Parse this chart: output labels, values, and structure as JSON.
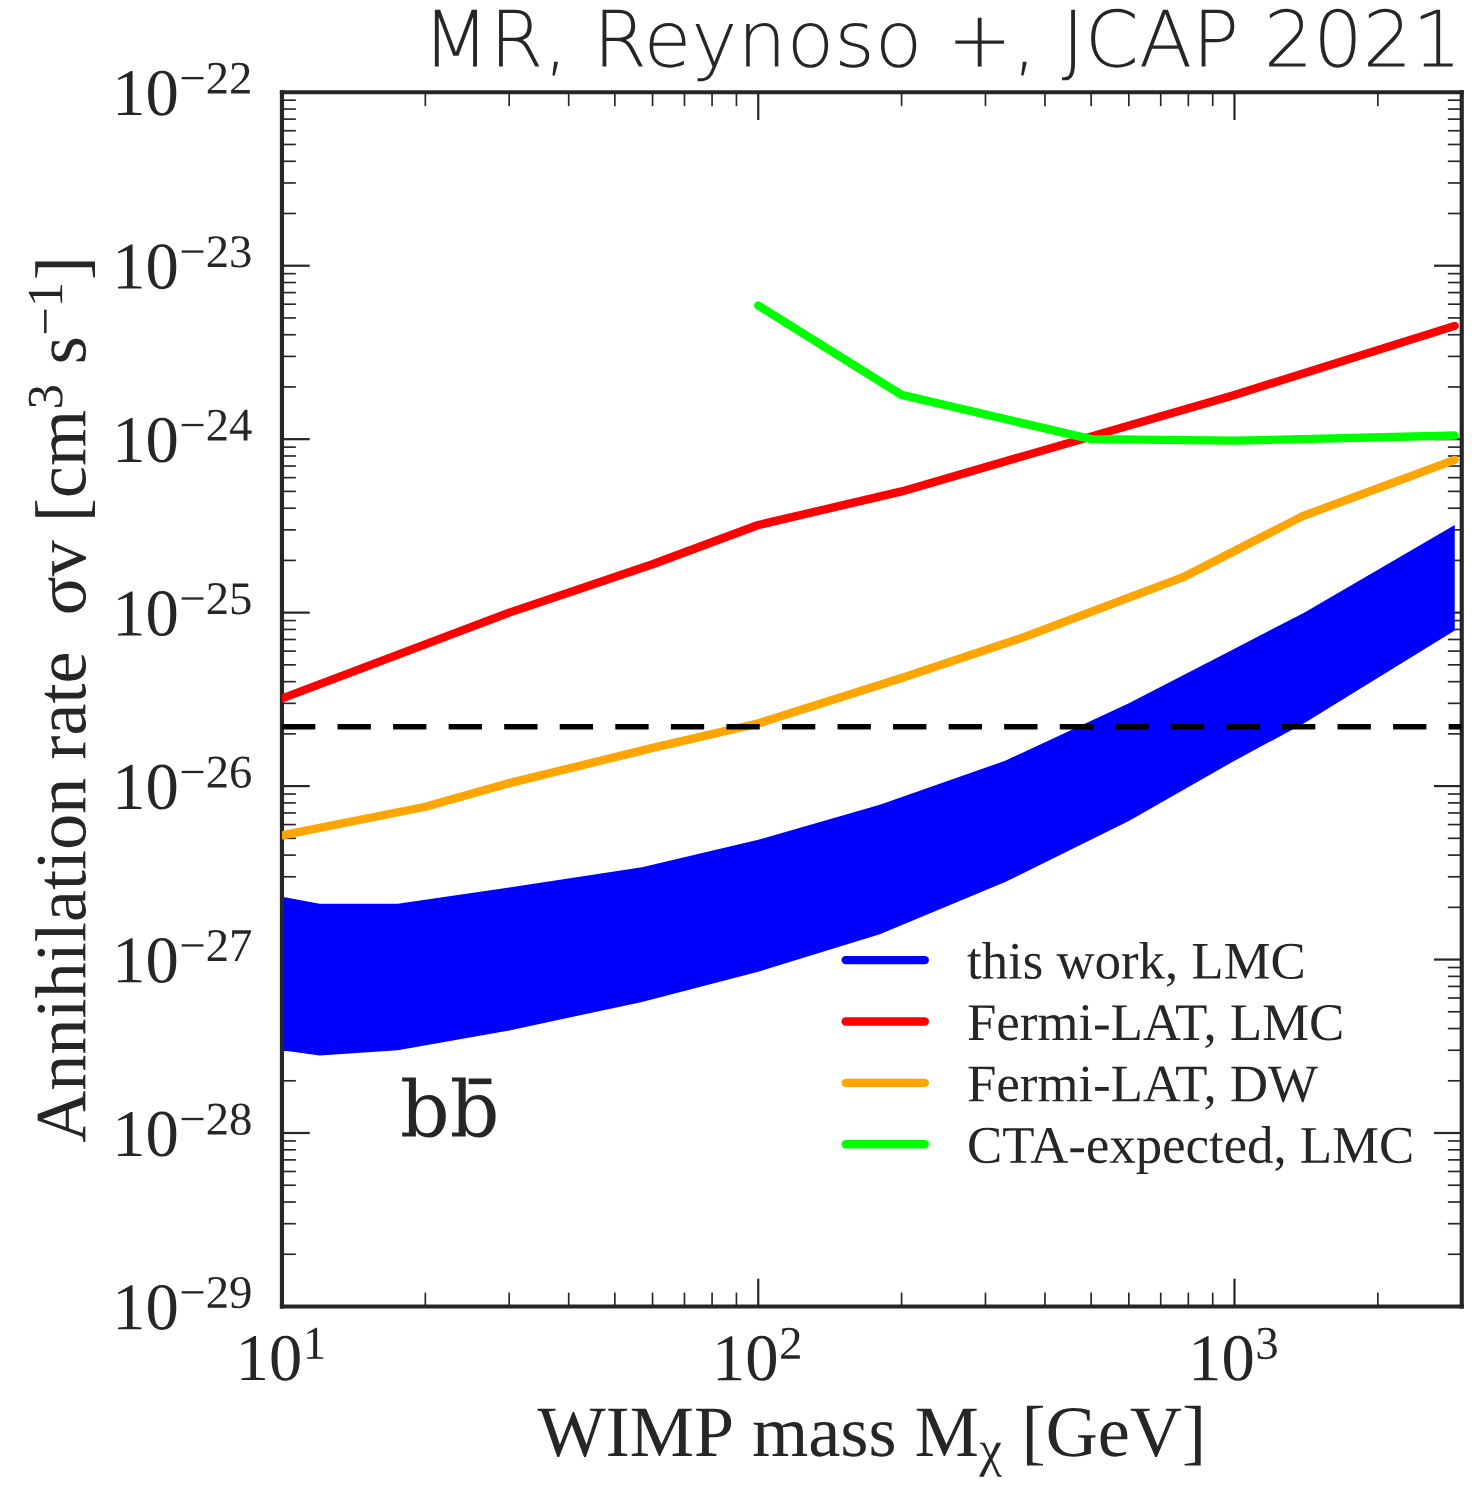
{
  "chart_data": {
    "type": "line",
    "title": "MR, Reynoso +, JCAP 2021",
    "xlabel": "WIMP mass M$_{χ}$ [GeV]",
    "ylabel": "Annihilation rate  σv [cm$^{3}$ s$^{−1}$]",
    "log": "xy",
    "xlim": [
      10,
      3000
    ],
    "ylim": [
      1e-29,
      1e-22
    ],
    "xticks": [
      {
        "value": 10,
        "label": "10$^{1}$"
      },
      {
        "value": 100,
        "label": "10$^{2}$"
      },
      {
        "value": 1000,
        "label": "10$^{3}$"
      }
    ],
    "yticks": [
      {
        "value": 1e-29,
        "label": "10$^{−29}$"
      },
      {
        "value": 1e-28,
        "label": "10$^{−28}$"
      },
      {
        "value": 1e-27,
        "label": "10$^{−27}$"
      },
      {
        "value": 1e-26,
        "label": "10$^{−26}$"
      },
      {
        "value": 1e-25,
        "label": "10$^{−25}$"
      },
      {
        "value": 1e-24,
        "label": "10$^{−24}$"
      },
      {
        "value": 1e-23,
        "label": "10$^{−23}$"
      },
      {
        "value": 1e-22,
        "label": "10$^{−22}$"
      }
    ],
    "series": [
      {
        "name": "this work, LMC",
        "color": "#0000ff",
        "x": [
          10,
          12,
          17.5,
          30,
          57,
          100,
          180,
          330,
          600,
          1000,
          1400,
          2900
        ],
        "values": [
          null,
          null,
          null,
          null,
          null,
          null,
          null,
          null,
          null,
          null,
          null,
          null
        ],
        "upper": [
          2.3e-27,
          2.1e-27,
          2.1e-27,
          2.6e-27,
          3.4e-27,
          4.9e-27,
          7.8e-27,
          1.4e-26,
          3e-26,
          6.2e-26,
          1e-25,
          3.2e-25
        ],
        "lower": [
          3e-28,
          2.8e-28,
          3e-28,
          3.9e-28,
          5.7e-28,
          8.5e-28,
          1.4e-27,
          2.8e-27,
          6.3e-27,
          1.4e-26,
          2.3e-26,
          7.9e-26
        ]
      },
      {
        "name": "Fermi-LAT, LMC",
        "color": "#ff0000",
        "x": [
          10,
          30,
          60,
          100,
          200,
          1000,
          2900
        ],
        "values": [
          3.2e-26,
          1e-25,
          1.9e-25,
          3.2e-25,
          5e-25,
          1.8e-24,
          4.5e-24
        ]
      },
      {
        "name": "Fermi-LAT, DW",
        "color": "#ffa500",
        "x": [
          10,
          20,
          30,
          60,
          100,
          200,
          360,
          780,
          1390,
          2900
        ],
        "values": [
          5.2e-27,
          7.6e-27,
          1.04e-26,
          1.66e-26,
          2.3e-26,
          4.2e-26,
          7.2e-26,
          1.6e-25,
          3.6e-25,
          7.6e-25
        ]
      },
      {
        "name": "CTA-expected, LMC",
        "color": "#00ff00",
        "x": [
          100,
          200,
          500,
          1000,
          2900
        ],
        "values": [
          5.9e-24,
          1.8e-24,
          1e-24,
          9.8e-25,
          1.05e-24
        ]
      }
    ],
    "ref_lines": [
      {
        "axis": "y",
        "value": 2.2e-26,
        "color": "#000000",
        "line_style": "dashed"
      }
    ],
    "annotations": [
      {
        "text": "bb̄"
      }
    ],
    "legend": "bottom right",
    "grid": false
  }
}
